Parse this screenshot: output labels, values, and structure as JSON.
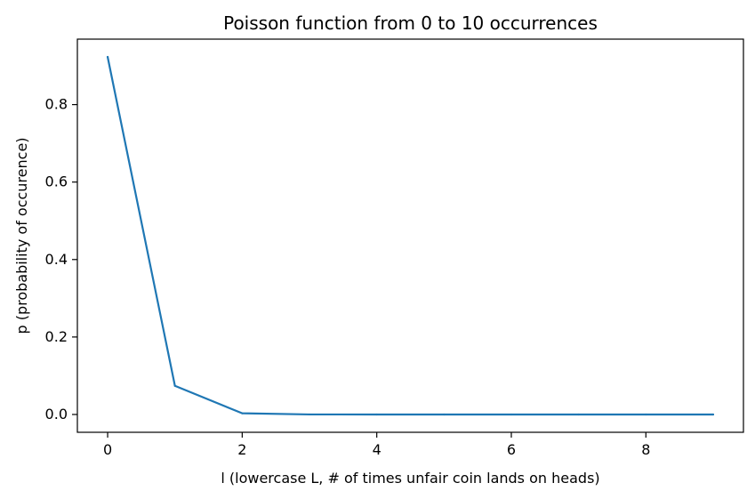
{
  "chart_data": {
    "type": "line",
    "title": "Poisson function from 0 to 10 occurrences",
    "xlabel": "l (lowercase L, # of times unfair coin lands on heads)",
    "ylabel": "p (probability of occurence)",
    "x": [
      0,
      1,
      2,
      3,
      4,
      5,
      6,
      7,
      8,
      9
    ],
    "series": [
      {
        "values": [
          0.923,
          0.074,
          0.003,
          0.0001,
          0.0,
          0.0,
          0.0,
          0.0,
          0.0,
          0.0
        ],
        "color": "#1f77b4"
      }
    ],
    "xlim": [
      -0.45,
      9.45
    ],
    "ylim": [
      -0.046,
      0.969
    ],
    "xticks": [
      0,
      2,
      4,
      6,
      8
    ],
    "xtick_labels": [
      "0",
      "2",
      "4",
      "6",
      "8"
    ],
    "yticks": [
      0.0,
      0.2,
      0.4,
      0.6,
      0.8
    ],
    "ytick_labels": [
      "0.0",
      "0.2",
      "0.4",
      "0.6",
      "0.8"
    ],
    "grid": false,
    "legend": false
  }
}
